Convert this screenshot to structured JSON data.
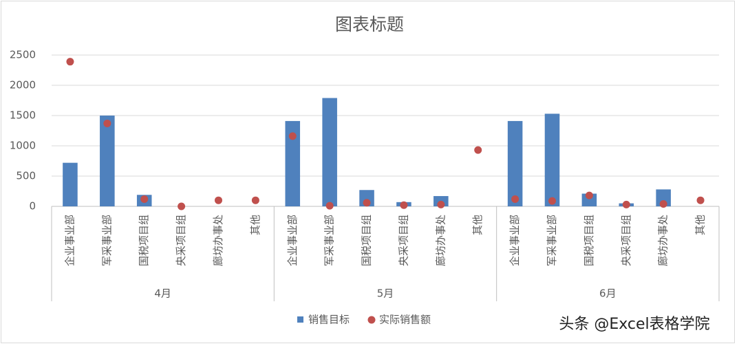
{
  "chart_data": {
    "type": "combo",
    "title": "图表标题",
    "categories": [
      "企业事业部",
      "军采事业部",
      "国税项目组",
      "央采项目组",
      "廊坊办事处",
      "其他",
      "企业事业部",
      "军采事业部",
      "国税项目组",
      "央采项目组",
      "廊坊办事处",
      "其他",
      "企业事业部",
      "军采事业部",
      "国税项目组",
      "央采项目组",
      "廊坊办事处",
      "其他"
    ],
    "groups": [
      "4月",
      "5月",
      "6月"
    ],
    "series": [
      {
        "name": "销售目标",
        "type": "bar",
        "color": "#4f81bd",
        "values": [
          720,
          1500,
          190,
          0,
          0,
          0,
          1410,
          1790,
          270,
          70,
          170,
          0,
          1410,
          1530,
          210,
          50,
          280,
          0
        ]
      },
      {
        "name": "实际销售额",
        "type": "dot",
        "color": "#c0504d",
        "values": [
          2390,
          1370,
          120,
          0,
          100,
          100,
          1160,
          10,
          60,
          20,
          30,
          930,
          120,
          90,
          180,
          30,
          40,
          100
        ]
      }
    ],
    "ylim": [
      0,
      2500
    ],
    "yticks": [
      0,
      500,
      1000,
      1500,
      2000,
      2500
    ],
    "grid": true,
    "legend": "bottom",
    "watermark": "头条 @Excel表格学院"
  }
}
